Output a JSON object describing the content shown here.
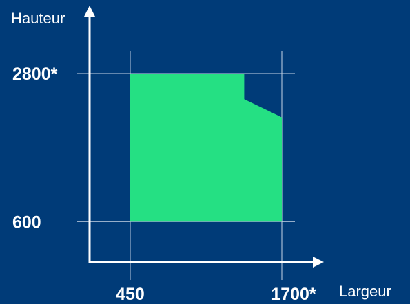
{
  "chart_data": {
    "type": "area",
    "xlabel": "Largeur",
    "ylabel": "Hauteur",
    "x_ticks": [
      {
        "value": 450,
        "label": "450"
      },
      {
        "value": 1700,
        "label": "1700*"
      }
    ],
    "y_ticks": [
      {
        "value": 600,
        "label": "600"
      },
      {
        "value": 2800,
        "label": "2800*"
      }
    ],
    "region": {
      "name": "",
      "points": [
        {
          "x": 450,
          "y": 600
        },
        {
          "x": 450,
          "y": 2800
        },
        {
          "x": 1390,
          "y": 2800
        },
        {
          "x": 1390,
          "y": 2420
        },
        {
          "x": 1700,
          "y": 2150
        },
        {
          "x": 1700,
          "y": 600
        }
      ]
    },
    "xlim": [
      115,
      1800
    ],
    "ylim": [
      0,
      3740
    ],
    "grid": true,
    "colors": {
      "background": "#003b78",
      "fill": "#25e083",
      "lines": "#ffffff",
      "grid": "#c8d4e6"
    }
  }
}
